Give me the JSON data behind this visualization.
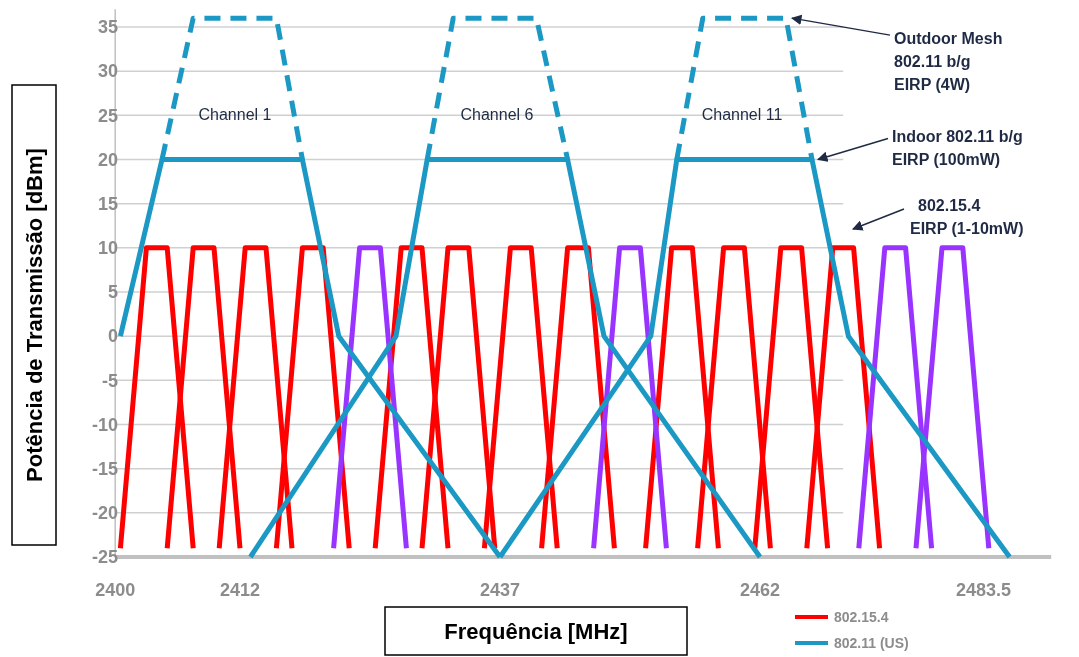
{
  "chart_data": {
    "type": "line",
    "xlabel": "Frequência [MHz]",
    "ylabel": "Potência de Transmissão [dBm]",
    "xlim": [
      2400,
      2490
    ],
    "xticks": [
      2400,
      2412,
      2437,
      2462,
      2483.5
    ],
    "ylim": [
      -25,
      37
    ],
    "yticks": [
      35,
      30,
      25,
      20,
      15,
      10,
      5,
      0,
      -5,
      -10,
      -15,
      -20,
      -25
    ],
    "grid": "y",
    "legend": "bottom right",
    "line_style": "solid",
    "marker": "none",
    "series": [
      {
        "name": "802.15.4",
        "color": "#ff0000",
        "x": [
          2400.5,
          2403,
          2405,
          2407.5
        ],
        "values": [
          -24,
          10,
          10,
          -24
        ]
      },
      {
        "color": "#ff0000",
        "x": [
          2405,
          2407.5,
          2409.5,
          2412
        ],
        "values": [
          -24,
          10,
          10,
          -24
        ]
      },
      {
        "color": "#ff0000",
        "x": [
          2410,
          2412.5,
          2414.5,
          2417
        ],
        "values": [
          -24,
          10,
          10,
          -24
        ]
      },
      {
        "color": "#ff0000",
        "x": [
          2415.5,
          2418,
          2420,
          2422.5
        ],
        "values": [
          -24,
          10,
          10,
          -24
        ]
      },
      {
        "color": "#ff0000",
        "x": [
          2425,
          2427.5,
          2429.5,
          2432
        ],
        "values": [
          -24,
          10,
          10,
          -24
        ]
      },
      {
        "color": "#ff0000",
        "x": [
          2429.5,
          2432,
          2434,
          2436.5
        ],
        "values": [
          -24,
          10,
          10,
          -24
        ]
      },
      {
        "color": "#ff0000",
        "x": [
          2435.5,
          2438,
          2440,
          2442.5
        ],
        "values": [
          -24,
          10,
          10,
          -24
        ]
      },
      {
        "color": "#ff0000",
        "x": [
          2441,
          2443.5,
          2445.5,
          2448
        ],
        "values": [
          -24,
          10,
          10,
          -24
        ]
      },
      {
        "color": "#ff0000",
        "x": [
          2451,
          2453.5,
          2455.5,
          2458
        ],
        "values": [
          -24,
          10,
          10,
          -24
        ]
      },
      {
        "color": "#ff0000",
        "x": [
          2456,
          2458.5,
          2460.5,
          2463
        ],
        "values": [
          -24,
          10,
          10,
          -24
        ]
      },
      {
        "color": "#ff0000",
        "x": [
          2461.5,
          2464,
          2466,
          2468.5
        ],
        "values": [
          -24,
          10,
          10,
          -24
        ]
      },
      {
        "color": "#ff0000",
        "x": [
          2466.5,
          2469,
          2471,
          2473.5
        ],
        "values": [
          -24,
          10,
          10,
          -24
        ]
      },
      {
        "color": "#9933ff",
        "x": [
          2421,
          2423.5,
          2425.5,
          2428
        ],
        "values": [
          -24,
          10,
          10,
          -24
        ]
      },
      {
        "color": "#9933ff",
        "x": [
          2446,
          2448.5,
          2450.5,
          2453
        ],
        "values": [
          -24,
          10,
          10,
          -24
        ]
      },
      {
        "color": "#9933ff",
        "x": [
          2471.5,
          2474,
          2476,
          2478.5
        ],
        "values": [
          -24,
          10,
          10,
          -24
        ]
      },
      {
        "color": "#9933ff",
        "x": [
          2477,
          2479.5,
          2481.5,
          2484
        ],
        "values": [
          -24,
          10,
          10,
          -24
        ]
      },
      {
        "name": "802.11 (US)",
        "color": "#1b98c4",
        "x": [
          2400.5,
          2404.5,
          2418,
          2421.5,
          2437
        ],
        "values": [
          0,
          20,
          20,
          0,
          -25
        ]
      },
      {
        "color": "#1b98c4",
        "x": [
          2413,
          2427,
          2430,
          2443.5,
          2447,
          2462
        ],
        "values": [
          -25,
          0,
          20,
          20,
          0,
          -25
        ]
      },
      {
        "color": "#1b98c4",
        "x": [
          2437,
          2451.5,
          2454,
          2467,
          2470.5,
          2486
        ],
        "values": [
          -25,
          0,
          20,
          20,
          0,
          -25
        ]
      },
      {
        "color": "#1b98c4",
        "line_style": "dashed",
        "x": [
          2404.5,
          2407.5,
          2415.5,
          2418
        ],
        "values": [
          20,
          36,
          36,
          20
        ]
      },
      {
        "color": "#1b98c4",
        "line_style": "dashed",
        "x": [
          2430,
          2432.5,
          2440.5,
          2443.5
        ],
        "values": [
          20,
          36,
          36,
          20
        ]
      },
      {
        "color": "#1b98c4",
        "line_style": "dashed",
        "x": [
          2454,
          2456.5,
          2464.5,
          2467
        ],
        "values": [
          20,
          36,
          36,
          20
        ]
      }
    ],
    "annotations": [
      "Channel 1",
      "Channel 6",
      "Channel 11",
      {
        "text": "Outdoor Mesh\n802.11 b/g\nEIRP (4W)",
        "x": 2464.5,
        "y": 36
      },
      {
        "text": "Indoor 802.11 b/g\nEIRP (100mW)",
        "x": 2467,
        "y": 20
      },
      "802.15.4\nEIRP (1-10mW)"
    ]
  }
}
